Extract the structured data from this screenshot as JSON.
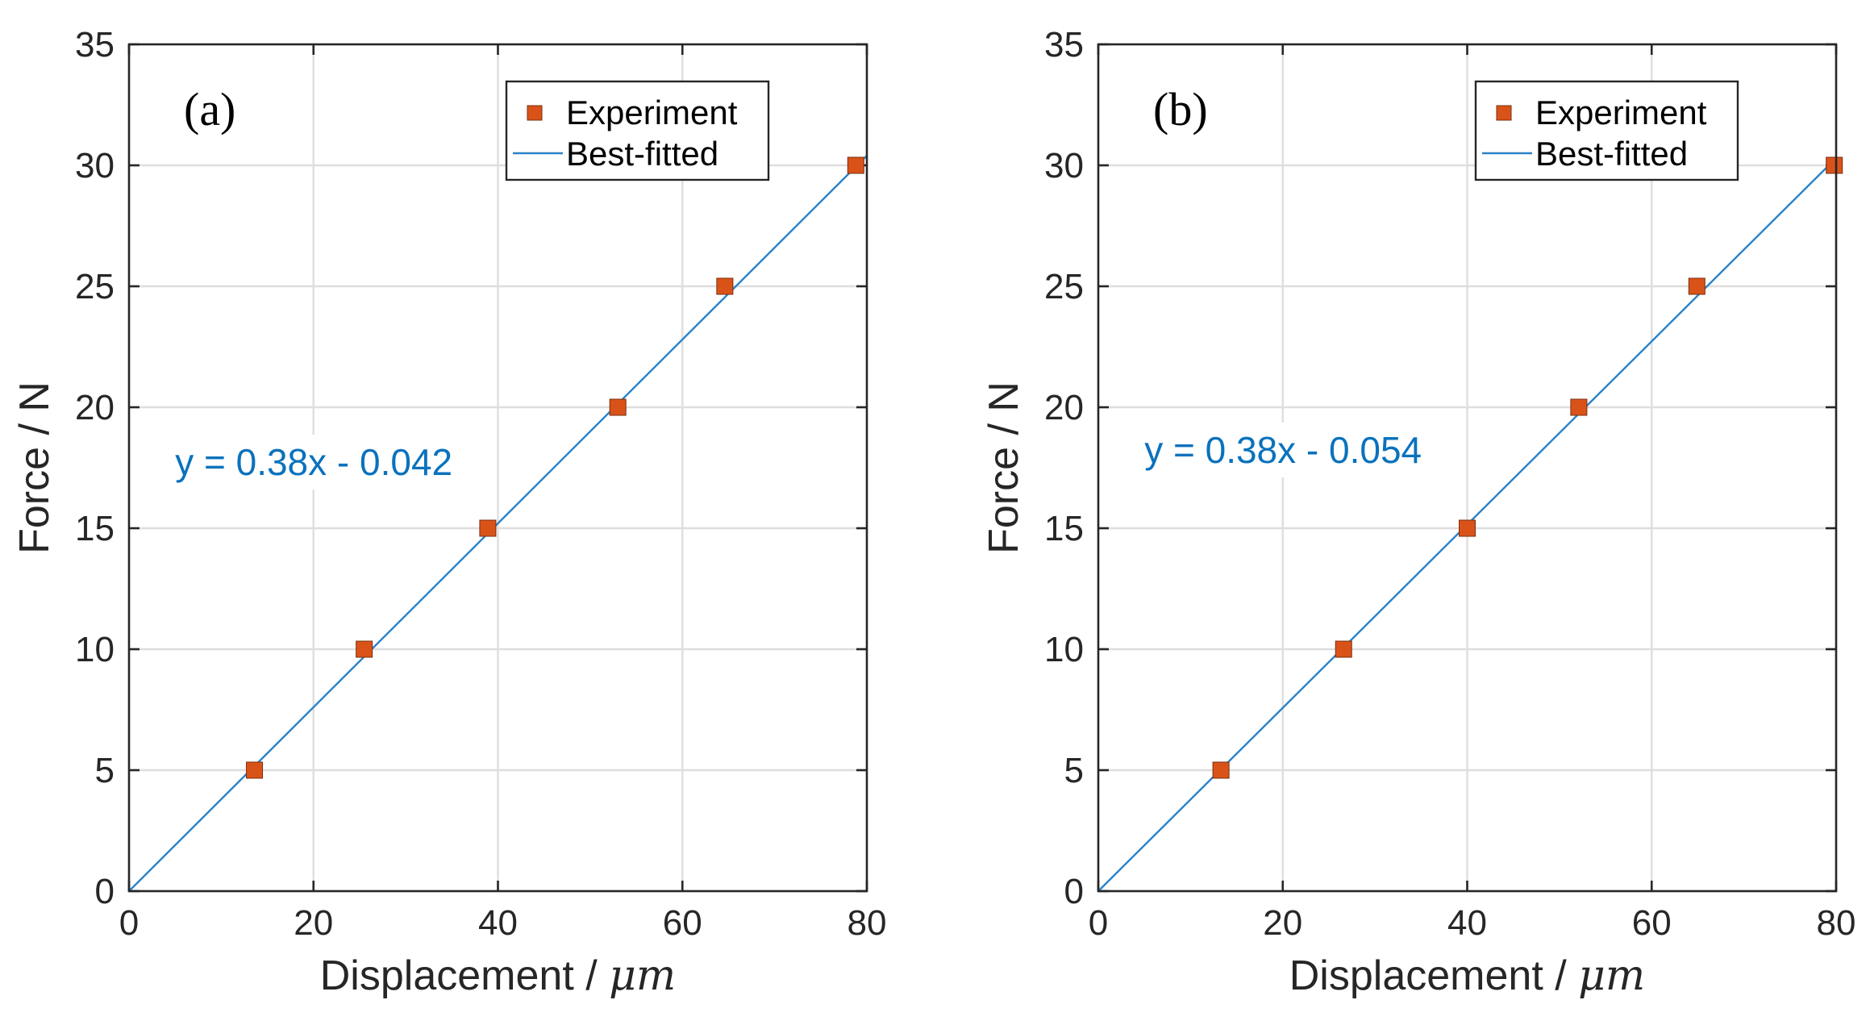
{
  "chart_data": [
    {
      "panel_label": "(a)",
      "type": "scatter",
      "title": "",
      "xlabel": "Displacement / ",
      "xlabel_unit": "μm",
      "ylabel": "Force / N",
      "xlim": [
        0,
        80
      ],
      "ylim": [
        0,
        35
      ],
      "xticks": [
        0,
        20,
        40,
        60,
        80
      ],
      "yticks": [
        0,
        5,
        10,
        15,
        20,
        25,
        30,
        35
      ],
      "grid": true,
      "legend_position": "top-right",
      "series": [
        {
          "name": "Experiment",
          "kind": "marker",
          "color": "#d95319",
          "x": [
            13.6,
            25.5,
            38.9,
            53.0,
            64.6,
            78.8
          ],
          "y": [
            5,
            10,
            15,
            20,
            25,
            30
          ]
        },
        {
          "name": "Best-fitted",
          "kind": "line",
          "color": "#2a82c8",
          "x": [
            0,
            80
          ],
          "y": [
            0,
            30.4
          ]
        }
      ],
      "annotation": {
        "text": "y = 0.38x - 0.042",
        "color": "#0a72bd",
        "x": 5,
        "y": 17.2
      }
    },
    {
      "panel_label": "(b)",
      "type": "scatter",
      "title": "",
      "xlabel": "Displacement / ",
      "xlabel_unit": "μm",
      "ylabel": "Force / N",
      "xlim": [
        0,
        80
      ],
      "ylim": [
        0,
        35
      ],
      "xticks": [
        0,
        20,
        40,
        60,
        80
      ],
      "yticks": [
        0,
        5,
        10,
        15,
        20,
        25,
        30,
        35
      ],
      "grid": true,
      "legend_position": "top-right",
      "series": [
        {
          "name": "Experiment",
          "kind": "marker",
          "color": "#d95319",
          "x": [
            13.3,
            26.6,
            40.0,
            52.1,
            64.9,
            79.8
          ],
          "y": [
            5,
            10,
            15,
            20,
            25,
            30
          ]
        },
        {
          "name": "Best-fitted",
          "kind": "line",
          "color": "#2a82c8",
          "x": [
            0,
            80
          ],
          "y": [
            0,
            30.3
          ]
        }
      ],
      "annotation": {
        "text": "y = 0.38x - 0.054",
        "color": "#0a72bd",
        "x": 5,
        "y": 17.7
      }
    }
  ]
}
